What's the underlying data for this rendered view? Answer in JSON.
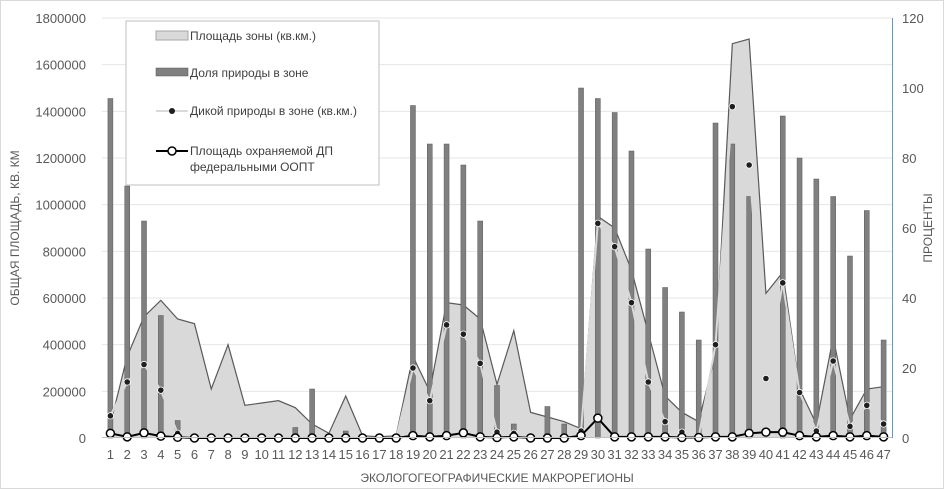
{
  "chart_data": {
    "type": "bar",
    "categories": [
      "1",
      "2",
      "3",
      "4",
      "5",
      "6",
      "7",
      "8",
      "9",
      "10",
      "11",
      "12",
      "13",
      "14",
      "15",
      "16",
      "17",
      "18",
      "19",
      "20",
      "21",
      "22",
      "23",
      "24",
      "25",
      "26",
      "27",
      "28",
      "29",
      "30",
      "31",
      "32",
      "33",
      "34",
      "35",
      "36",
      "37",
      "38",
      "39",
      "40",
      "41",
      "42",
      "43",
      "44",
      "45",
      "46",
      "47"
    ],
    "xlabel": "ЭКОЛОГОГЕОГРАФИЧЕСКИЕ МАКРОРЕГИОНЫ",
    "ylabel": "ОБЩАЯ ПЛОЩАДЬ, КВ. КМ",
    "y2label": "ПРОЦЕНТЫ",
    "ylim": [
      0,
      1800000
    ],
    "y2lim": [
      0,
      120
    ],
    "yticks": [
      "0",
      "200000",
      "400000",
      "600000",
      "800000",
      "1000000",
      "1200000",
      "1400000",
      "1600000",
      "1800000"
    ],
    "y2ticks": [
      "0",
      "20",
      "40",
      "60",
      "80",
      "100",
      "120"
    ],
    "legend_position": "top-left",
    "series": [
      {
        "name": "Площадь зоны (кв.км.)",
        "type": "area",
        "axis": "left",
        "values": [
          60000,
          350000,
          520000,
          590000,
          510000,
          490000,
          210000,
          400000,
          140000,
          150000,
          160000,
          130000,
          60000,
          20000,
          180000,
          10000,
          5000,
          10000,
          350000,
          200000,
          580000,
          570000,
          510000,
          230000,
          460000,
          110000,
          90000,
          70000,
          40000,
          950000,
          900000,
          720000,
          450000,
          180000,
          110000,
          70000,
          360000,
          1690000,
          1710000,
          620000,
          710000,
          210000,
          60000,
          430000,
          80000,
          210000,
          220000
        ]
      },
      {
        "name": "Доля природы в зоне",
        "type": "bar",
        "axis": "right",
        "values": [
          97,
          72,
          62,
          35,
          5,
          0,
          0,
          0,
          0,
          0,
          0,
          3,
          14,
          0,
          2,
          0,
          0,
          0,
          95,
          84,
          84,
          78,
          62,
          15,
          4,
          0,
          9,
          4,
          100,
          97,
          93,
          82,
          54,
          43,
          36,
          28,
          90,
          84,
          69,
          0,
          92,
          80,
          74,
          69,
          52,
          65,
          28
        ]
      },
      {
        "name": "Дикой природы в зоне (кв.км.)",
        "type": "line",
        "axis": "left",
        "values": [
          95000,
          240000,
          315000,
          205000,
          20000,
          0,
          0,
          0,
          0,
          0,
          0,
          0,
          0,
          0,
          0,
          0,
          0,
          0,
          300000,
          160000,
          485000,
          445000,
          320000,
          25000,
          20000,
          0,
          0,
          0,
          30000,
          920000,
          820000,
          580000,
          240000,
          70000,
          25000,
          5000,
          400000,
          1420000,
          1170000,
          255000,
          665000,
          195000,
          30000,
          330000,
          50000,
          140000,
          60000
        ]
      },
      {
        "name": "Площадь охраняемой ДП федеральными ООПТ",
        "type": "line",
        "axis": "left",
        "values": [
          20000,
          5000,
          22000,
          8000,
          3000,
          0,
          0,
          0,
          0,
          0,
          0,
          0,
          0,
          0,
          0,
          0,
          0,
          0,
          10000,
          5000,
          10000,
          22000,
          5000,
          2000,
          5000,
          0,
          0,
          0,
          10000,
          85000,
          5000,
          5000,
          5000,
          5000,
          2000,
          2000,
          5000,
          5000,
          20000,
          25000,
          25000,
          10000,
          5000,
          10000,
          5000,
          10000,
          5000
        ]
      }
    ]
  }
}
